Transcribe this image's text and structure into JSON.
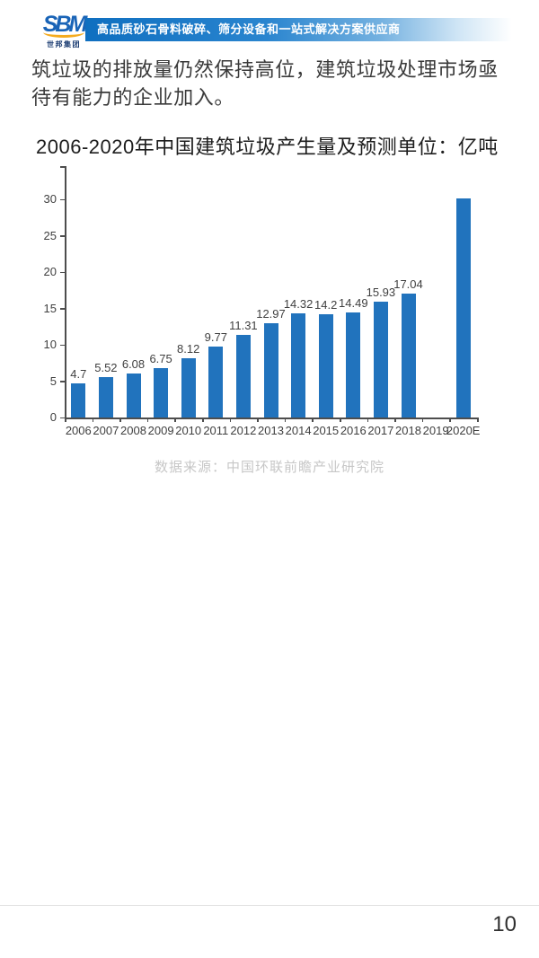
{
  "header": {
    "logo": {
      "brand": "SBM",
      "subtitle": "世邦集团"
    },
    "banner_text": "高品质砂石骨料破碎、筛分设备和一站式解决方案供应商",
    "banner_color": "#0f6fc0",
    "logo_brand_color": "#1a64b7",
    "logo_arc_color": "#f5ab1e"
  },
  "body": {
    "paragraph": "筑垃圾的排放量仍然保持高位，建筑垃圾处理市场亟待有能力的企业加入。"
  },
  "chart_data": {
    "type": "bar",
    "title": "2006-2020年中国建筑垃圾产生量及预测单位：亿吨",
    "unit": "亿吨",
    "categories": [
      "2006",
      "2007",
      "2008",
      "2009",
      "2010",
      "2011",
      "2012",
      "2013",
      "2014",
      "2015",
      "2016",
      "2017",
      "2018",
      "2019",
      "2020E"
    ],
    "values": [
      4.7,
      5.52,
      6.08,
      6.75,
      8.12,
      9.77,
      11.31,
      12.97,
      14.32,
      14.2,
      14.49,
      15.93,
      17.04,
      null,
      30.1
    ],
    "data_labels": [
      "4.7",
      "5.52",
      "6.08",
      "6.75",
      "8.12",
      "9.77",
      "11.31",
      "12.97",
      "14.32",
      "14.2",
      "14.49",
      "15.93",
      "17.04",
      "",
      ""
    ],
    "yticks": [
      0,
      5,
      10,
      15,
      20,
      25,
      30
    ],
    "ylim": [
      0,
      34.5
    ],
    "bar_color": "#2173bd",
    "grid": false,
    "legend": null,
    "source": "数据来源：中国环联前瞻产业研究院"
  },
  "footer": {
    "page_number": "10"
  }
}
